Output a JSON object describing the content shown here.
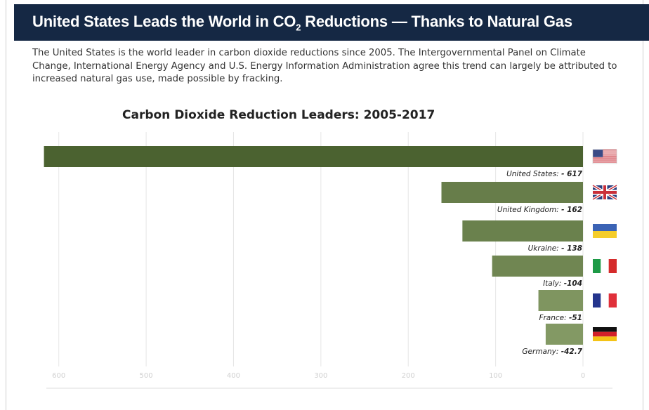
{
  "header": {
    "title_prefix": "United States Leads the World in CO",
    "title_sub": "2",
    "title_suffix": " Reductions — Thanks to Natural Gas"
  },
  "intro": "The United States is the world leader in carbon dioxide reductions since 2005. The Intergovernmental Panel on Climate Change, International Energy Agency and U.S. Energy Information Administration agree this trend can largely be attributed to increased natural gas use, made possible by fracking.",
  "chart_data": {
    "type": "bar",
    "orientation": "horizontal",
    "title": "Carbon Dioxide Reduction Leaders: 2005-2017",
    "categories": [
      "United States",
      "United Kingdom",
      "Ukraine",
      "Italy",
      "France",
      "Germany"
    ],
    "values": [
      617,
      162,
      138,
      104,
      51,
      42.7
    ],
    "value_labels": [
      "- 617",
      "- 162",
      "- 138",
      "-104",
      "-51",
      "-42.7"
    ],
    "xlim": [
      620,
      0
    ],
    "x_ticks": [
      600,
      500,
      400,
      300,
      200,
      100,
      0
    ],
    "grid": true,
    "flags": [
      "us-flag-icon",
      "uk-flag-icon",
      "ukraine-flag-icon",
      "italy-flag-icon",
      "france-flag-icon",
      "germany-flag-icon"
    ],
    "colors": {
      "bar_dark": "#4b6230",
      "bar_light": "#849a65"
    }
  }
}
